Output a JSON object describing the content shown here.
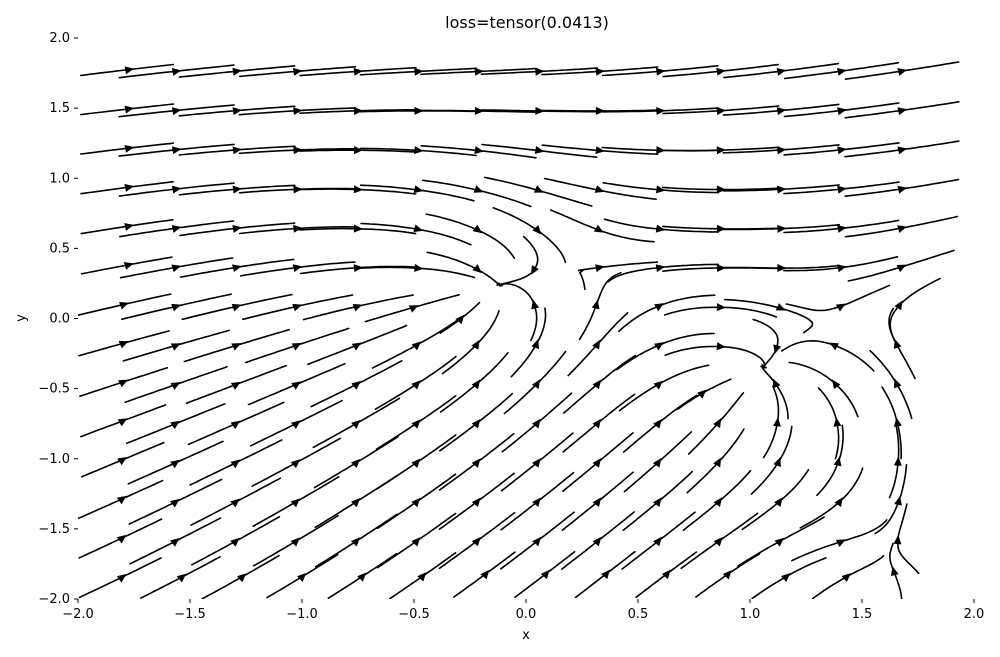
{
  "chart_data": {
    "type": "streamplot",
    "title": "loss=tensor(0.0413)",
    "xlabel": "x",
    "ylabel": "y",
    "xlim": [
      -2.0,
      2.0
    ],
    "ylim": [
      -2.0,
      2.0
    ],
    "xticks": [
      "−2.0",
      "−1.5",
      "−1.0",
      "−0.5",
      "0.0",
      "0.5",
      "1.0",
      "1.5",
      "2.0"
    ],
    "yticks": [
      "−2.0",
      "−1.5",
      "−1.0",
      "−0.5",
      "0.0",
      "0.5",
      "1.0",
      "1.5",
      "2.0"
    ],
    "grid": false,
    "line_color": "#000000",
    "field": {
      "description_free": true,
      "sinks": [
        [
          -0.22,
          0.2
        ],
        [
          1.0,
          -0.45
        ],
        [
          1.55,
          -1.85
        ]
      ],
      "direction": "flow along +x,+y diagonal toward upper-right, converging near sinks"
    }
  }
}
